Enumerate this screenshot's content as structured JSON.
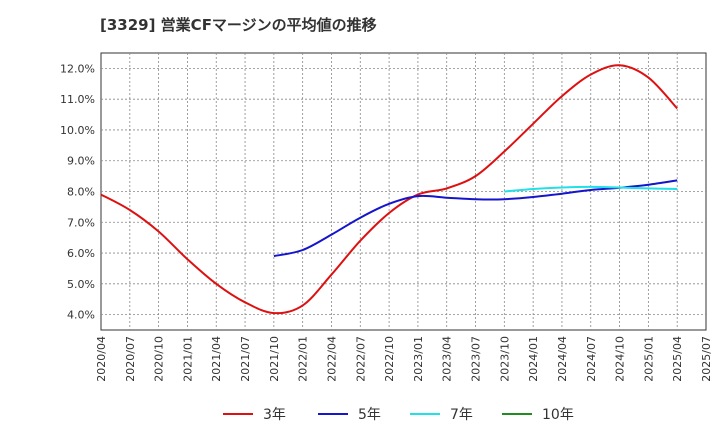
{
  "chart_data": {
    "type": "line",
    "title": "[3329]  営業CFマージンの平均値の推移",
    "xlabel": "",
    "ylabel": "",
    "x": [
      "2020/04",
      "2020/07",
      "2020/10",
      "2021/01",
      "2021/04",
      "2021/07",
      "2021/10",
      "2022/01",
      "2022/04",
      "2022/07",
      "2022/10",
      "2023/01",
      "2023/04",
      "2023/07",
      "2023/10",
      "2024/01",
      "2024/04",
      "2024/07",
      "2024/10",
      "2025/01",
      "2025/04",
      "2025/07"
    ],
    "y_ticks": [
      "4.0%",
      "5.0%",
      "6.0%",
      "7.0%",
      "8.0%",
      "9.0%",
      "10.0%",
      "11.0%",
      "12.0%"
    ],
    "ylim": [
      3.5,
      12.5
    ],
    "grid": true,
    "legend_position": "bottom",
    "series": [
      {
        "name": "3年",
        "color": "#dd1111",
        "values": [
          7.9,
          7.4,
          6.7,
          5.8,
          5.0,
          4.4,
          4.05,
          4.3,
          5.3,
          6.4,
          7.3,
          7.9,
          8.1,
          8.5,
          9.3,
          10.2,
          11.1,
          11.8,
          12.1,
          11.7,
          10.7,
          null
        ]
      },
      {
        "name": "5年",
        "color": "#1515cc",
        "values": [
          null,
          null,
          null,
          null,
          null,
          null,
          5.9,
          6.1,
          6.6,
          7.15,
          7.6,
          7.85,
          7.8,
          7.75,
          7.75,
          7.82,
          7.93,
          8.05,
          8.12,
          8.22,
          8.36,
          null
        ]
      },
      {
        "name": "7年",
        "color": "#22e0e8",
        "values": [
          null,
          null,
          null,
          null,
          null,
          null,
          null,
          null,
          null,
          null,
          null,
          null,
          null,
          null,
          8.0,
          8.08,
          8.13,
          8.15,
          8.13,
          8.1,
          8.08,
          null
        ]
      },
      {
        "name": "10年",
        "color": "#228B22",
        "values": [
          null,
          null,
          null,
          null,
          null,
          null,
          null,
          null,
          null,
          null,
          null,
          null,
          null,
          null,
          null,
          null,
          null,
          null,
          null,
          null,
          null,
          null
        ]
      }
    ]
  }
}
